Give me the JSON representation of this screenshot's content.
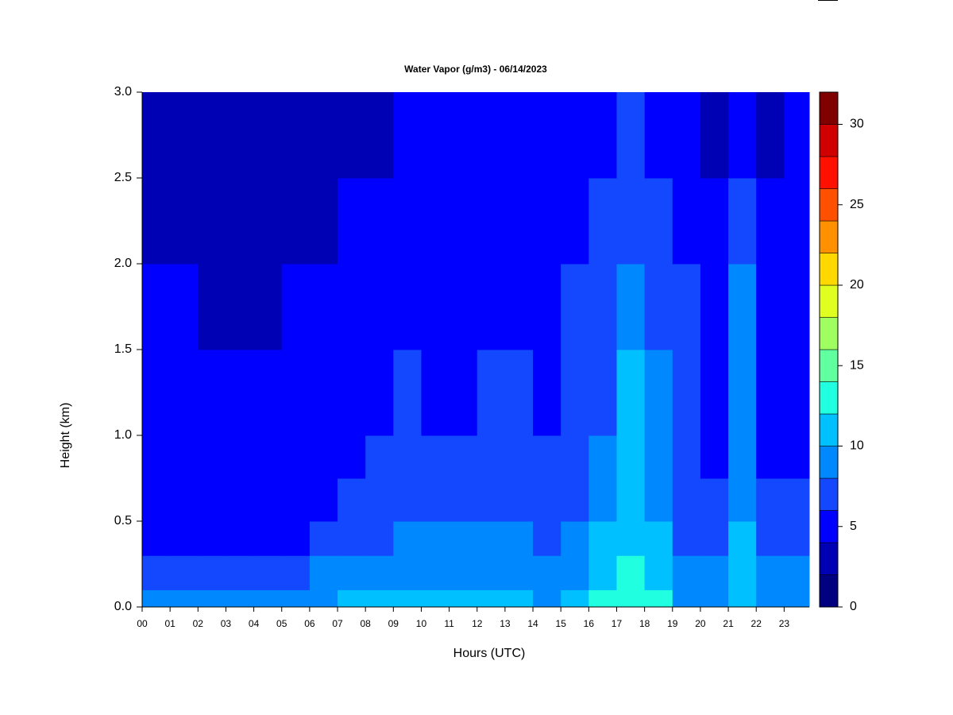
{
  "chart_data": {
    "type": "heatmap",
    "title": "Water Vapor (g/m3) - 06/14/2023",
    "x_label": "Hours (UTC)",
    "y_label": "Height (km)",
    "x": [
      0,
      1,
      2,
      3,
      4,
      5,
      6,
      7,
      8,
      9,
      10,
      11,
      12,
      13,
      14,
      15,
      16,
      17,
      18,
      19,
      20,
      21,
      22,
      23,
      23.9
    ],
    "y": [
      0,
      0.1,
      0.3,
      0.5,
      0.75,
      1.0,
      1.5,
      2.0,
      2.5,
      3.0
    ],
    "z": [
      [
        9,
        9,
        9,
        9,
        9,
        9,
        9,
        11,
        11,
        11,
        11,
        11,
        11,
        11,
        9,
        11,
        13,
        13,
        13,
        9,
        9,
        11,
        9,
        9
      ],
      [
        7,
        7,
        7,
        7,
        7,
        7,
        9,
        9,
        9,
        9,
        9,
        9,
        9,
        9,
        9,
        9,
        11,
        13,
        11,
        9,
        9,
        11,
        9,
        9
      ],
      [
        5,
        5,
        5,
        5,
        5,
        5,
        7,
        7,
        7,
        9,
        9,
        9,
        9,
        9,
        7,
        9,
        11,
        11,
        11,
        7,
        7,
        11,
        7,
        7
      ],
      [
        5,
        5,
        5,
        5,
        5,
        5,
        5,
        7,
        7,
        7,
        7,
        7,
        7,
        7,
        7,
        7,
        9,
        11,
        9,
        7,
        7,
        9,
        7,
        7
      ],
      [
        5,
        5,
        5,
        5,
        5,
        5,
        5,
        5,
        7,
        7,
        7,
        7,
        7,
        7,
        7,
        7,
        9,
        11,
        9,
        7,
        5,
        9,
        5,
        5
      ],
      [
        5,
        5,
        5,
        5,
        5,
        5,
        5,
        5,
        5,
        7,
        5,
        5,
        7,
        7,
        5,
        7,
        7,
        11,
        9,
        7,
        5,
        9,
        5,
        5
      ],
      [
        5,
        5,
        3,
        3,
        3,
        5,
        5,
        5,
        5,
        5,
        5,
        5,
        5,
        5,
        5,
        7,
        7,
        9,
        7,
        7,
        5,
        9,
        5,
        5
      ],
      [
        3,
        3,
        3,
        3,
        3,
        3,
        3,
        5,
        5,
        5,
        5,
        5,
        5,
        5,
        5,
        5,
        7,
        7,
        7,
        5,
        5,
        7,
        5,
        5
      ],
      [
        3,
        3,
        3,
        3,
        3,
        3,
        3,
        3,
        3,
        5,
        5,
        5,
        5,
        5,
        5,
        5,
        5,
        7,
        5,
        5,
        3,
        5,
        3,
        5
      ]
    ],
    "xlim": [
      0,
      23.9
    ],
    "ylim": [
      0,
      3.0
    ],
    "xticks": [
      {
        "value": 0,
        "label": "00"
      },
      {
        "value": 1,
        "label": "01"
      },
      {
        "value": 2,
        "label": "02"
      },
      {
        "value": 3,
        "label": "03"
      },
      {
        "value": 4,
        "label": "04"
      },
      {
        "value": 5,
        "label": "05"
      },
      {
        "value": 6,
        "label": "06"
      },
      {
        "value": 7,
        "label": "07"
      },
      {
        "value": 8,
        "label": "08"
      },
      {
        "value": 9,
        "label": "09"
      },
      10,
      11,
      12,
      13,
      14,
      15,
      16,
      17,
      18,
      19,
      20,
      21,
      22,
      23
    ],
    "yticks": [
      {
        "value": 0,
        "label": "0.0"
      },
      0.5,
      {
        "value": 1,
        "label": "1.0"
      },
      1.5,
      {
        "value": 2,
        "label": "2.0"
      },
      2.5,
      {
        "value": 3,
        "label": "3.0"
      }
    ],
    "levels": [
      0,
      2,
      4,
      6,
      8,
      10,
      12,
      14,
      16,
      18,
      20,
      22,
      24,
      26,
      28,
      30,
      32
    ],
    "colors": [
      "#000080",
      "#0000b4",
      "#0000ff",
      "#1448ff",
      "#0088ff",
      "#00c0ff",
      "#20ffe0",
      "#60ff9f",
      "#a0ff60",
      "#e0ff20",
      "#ffd800",
      "#ff9000",
      "#ff5000",
      "#ff1000",
      "#d00000",
      "#800000"
    ],
    "colorbar_ticks": [
      0,
      5,
      10,
      15,
      20,
      25,
      30
    ]
  }
}
